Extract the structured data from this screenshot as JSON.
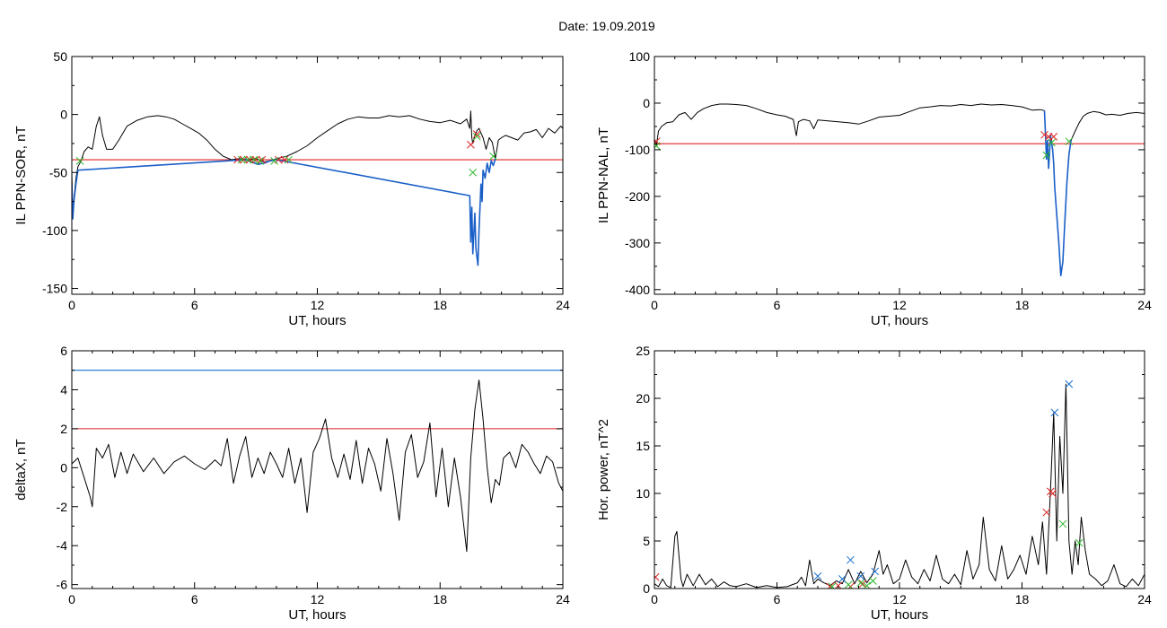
{
  "title": "Date:  19.09.2019",
  "colors": {
    "axis": "#000000",
    "threshold_red": "#e02020",
    "threshold_blue": "#1c6fd0",
    "trace": "#000000",
    "trace_blue": "#1a5fc8",
    "marker_red": "#e02020",
    "marker_green": "#2db82d",
    "marker_blue": "#1c6fd0"
  },
  "chart_data": [
    {
      "id": "p1",
      "type": "line",
      "xlabel": "UT, hours",
      "ylabel": "IL PPN-SOR, nT",
      "xlim": [
        0,
        24
      ],
      "ylim": [
        -155,
        50
      ],
      "xticks": [
        0,
        6,
        12,
        18,
        24
      ],
      "xtick_labels": [
        "0",
        "6",
        "12",
        "18",
        "24"
      ],
      "yticks": [
        50,
        0,
        -50,
        -100,
        -150
      ],
      "ytick_labels": [
        "50",
        "0",
        "-50",
        "-100",
        "-150"
      ],
      "hlines": [
        {
          "y": -39,
          "color": "red"
        }
      ],
      "series": [
        {
          "style": "black",
          "x": [
            0,
            0.05,
            0.12,
            0.2,
            0.3,
            0.45,
            0.6,
            0.8,
            1.0,
            1.2,
            1.35,
            1.5,
            1.7,
            2.0,
            2.3,
            2.7,
            3.2,
            3.7,
            4.2,
            4.6,
            5.0,
            5.4,
            5.8,
            6.2,
            6.6,
            7.0,
            7.4,
            7.8,
            8.2,
            8.6,
            9.0,
            9.4,
            9.7,
            10.0,
            10.5,
            11.0,
            11.5,
            12.0,
            12.5,
            13.0,
            13.5,
            14.0,
            14.5,
            15.0,
            15.5,
            16.0,
            16.5,
            17.0,
            17.5,
            18.0,
            18.5,
            19.0,
            19.3,
            19.45,
            19.5,
            19.55,
            19.6,
            19.7,
            19.8,
            19.9,
            20.0,
            20.1,
            20.25,
            20.4,
            20.55,
            20.7,
            20.85,
            21.0,
            21.2,
            21.5,
            21.8,
            22.1,
            22.4,
            22.7,
            23.0,
            23.3,
            23.6,
            23.9,
            24.0
          ],
          "y": [
            -50,
            -85,
            -70,
            -55,
            -45,
            -40,
            -32,
            -28,
            -30,
            -10,
            -2,
            -18,
            -30,
            -30,
            -22,
            -10,
            -5,
            -2,
            -1,
            -2,
            -4,
            -8,
            -12,
            -16,
            -22,
            -30,
            -36,
            -39,
            -38,
            -39,
            -38,
            -41,
            -40,
            -38,
            -36,
            -32,
            -27,
            -20,
            -14,
            -8,
            -4,
            -2,
            -3,
            -3,
            -1,
            -2,
            -1,
            -4,
            -6,
            -7,
            -5,
            -8,
            -4,
            -12,
            3,
            -20,
            -25,
            -18,
            -14,
            -12,
            -16,
            -20,
            -30,
            -20,
            -24,
            -38,
            -22,
            -20,
            -18,
            -20,
            -22,
            -16,
            -15,
            -13,
            -20,
            -12,
            -16,
            -10,
            -12
          ]
        },
        {
          "style": "blue",
          "x": [
            0,
            0.05,
            0.1,
            0.2,
            0.3,
            8.5,
            8.8,
            9.1,
            9.4,
            9.7,
            10.0,
            19.45,
            19.5,
            19.55,
            19.6,
            19.7,
            19.75,
            19.85,
            19.9,
            20.0,
            20.05,
            20.1,
            20.2,
            20.3,
            20.4,
            20.5,
            20.6,
            20.7
          ],
          "y": [
            -60,
            -90,
            -75,
            -60,
            -48,
            -39,
            -41,
            -43,
            -42,
            -40,
            -39,
            -70,
            -110,
            -80,
            -120,
            -85,
            -115,
            -130,
            -100,
            -60,
            -75,
            -48,
            -55,
            -42,
            -50,
            -40,
            -44,
            -38
          ]
        }
      ],
      "markers": [
        {
          "color": "red",
          "x": [
            8.1,
            8.4,
            8.7,
            9.0,
            9.3,
            10.1,
            10.4,
            19.5,
            19.8
          ],
          "y": [
            -39,
            -39,
            -39,
            -39,
            -39,
            -39,
            -39,
            -26,
            -17
          ]
        },
        {
          "color": "green",
          "x": [
            0.4,
            8.3,
            8.6,
            8.9,
            9.2,
            9.9,
            10.6,
            19.6,
            19.8,
            20.6
          ],
          "y": [
            -40,
            -39,
            -39,
            -39,
            -40,
            -40,
            -39,
            -50,
            -19,
            -36
          ]
        }
      ]
    },
    {
      "id": "p2",
      "type": "line",
      "xlabel": "UT, hours",
      "ylabel": "IL PPN-NAL, nT",
      "xlim": [
        0,
        24
      ],
      "ylim": [
        -410,
        100
      ],
      "xticks": [
        0,
        6,
        12,
        18,
        24
      ],
      "xtick_labels": [
        "0",
        "6",
        "12",
        "18",
        "24"
      ],
      "yticks": [
        100,
        0,
        -100,
        -200,
        -300,
        -400
      ],
      "ytick_labels": [
        "100",
        "0",
        "-100",
        "-200",
        "-300",
        "-400"
      ],
      "hlines": [
        {
          "y": -87,
          "color": "red"
        }
      ],
      "series": [
        {
          "style": "black",
          "x": [
            0,
            0.1,
            0.2,
            0.35,
            0.6,
            0.9,
            1.2,
            1.5,
            1.8,
            2.1,
            2.4,
            2.8,
            3.2,
            3.6,
            4.0,
            4.5,
            5.0,
            5.5,
            6.0,
            6.4,
            6.8,
            6.95,
            7.05,
            7.3,
            7.6,
            7.8,
            8.0,
            8.5,
            9.0,
            9.5,
            10.0,
            10.5,
            11.0,
            11.5,
            12.0,
            12.5,
            13.0,
            13.5,
            14.0,
            14.5,
            15.0,
            15.5,
            16.0,
            16.5,
            17.0,
            17.5,
            18.0,
            18.5,
            18.9,
            19.1
          ],
          "y": [
            -80,
            -90,
            -60,
            -50,
            -42,
            -40,
            -25,
            -20,
            -35,
            -20,
            -12,
            -5,
            -2,
            -2,
            -3,
            -5,
            -12,
            -20,
            -25,
            -28,
            -35,
            -70,
            -40,
            -35,
            -38,
            -55,
            -36,
            -38,
            -40,
            -42,
            -45,
            -38,
            -30,
            -28,
            -26,
            -18,
            -10,
            -8,
            -5,
            -6,
            -3,
            -5,
            -2,
            -4,
            -3,
            -5,
            -8,
            -15,
            -14,
            -16
          ]
        },
        {
          "style": "blue",
          "x": [
            19.1,
            19.2,
            19.25,
            19.3,
            19.4,
            19.5,
            19.55,
            19.6,
            19.7,
            19.8,
            19.9,
            20.0,
            20.1,
            20.2,
            20.3,
            20.4
          ],
          "y": [
            -16,
            -120,
            -80,
            -140,
            -70,
            -100,
            -130,
            -180,
            -240,
            -300,
            -370,
            -340,
            -250,
            -170,
            -110,
            -80
          ]
        },
        {
          "style": "black",
          "x": [
            20.4,
            20.6,
            20.8,
            21.0,
            21.2,
            21.5,
            21.8,
            22.1,
            22.4,
            22.8,
            23.2,
            23.6,
            24.0
          ],
          "y": [
            -80,
            -60,
            -42,
            -28,
            -22,
            -18,
            -20,
            -25,
            -24,
            -26,
            -22,
            -20,
            -22
          ]
        }
      ],
      "markers": [
        {
          "color": "red",
          "x": [
            0.1,
            19.1,
            19.3,
            19.55
          ],
          "y": [
            -82,
            -68,
            -72,
            -72
          ]
        },
        {
          "color": "green",
          "x": [
            0.1,
            19.2,
            19.45,
            20.3
          ],
          "y": [
            -92,
            -112,
            -85,
            -82
          ]
        }
      ]
    },
    {
      "id": "p3",
      "type": "line",
      "xlabel": "UT, hours",
      "ylabel": "deltaX, nT",
      "xlim": [
        0,
        24
      ],
      "ylim": [
        -6.2,
        6
      ],
      "xticks": [
        0,
        6,
        12,
        18,
        24
      ],
      "xtick_labels": [
        "0",
        "6",
        "12",
        "18",
        "24"
      ],
      "yticks": [
        6,
        4,
        2,
        0,
        -2,
        -4,
        -6
      ],
      "ytick_labels": [
        "6",
        "4",
        "2",
        "0",
        "-2",
        "-4",
        "-6"
      ],
      "hlines": [
        {
          "y": 5,
          "color": "blue"
        },
        {
          "y": 2,
          "color": "red"
        }
      ],
      "series": [
        {
          "style": "black",
          "x": [
            0,
            0.3,
            0.6,
            0.9,
            1.0,
            1.2,
            1.5,
            1.8,
            2.1,
            2.4,
            2.7,
            3.0,
            3.5,
            4.0,
            4.5,
            5.0,
            5.5,
            6.0,
            6.5,
            7.0,
            7.3,
            7.6,
            7.9,
            8.2,
            8.5,
            8.8,
            9.1,
            9.4,
            9.7,
            10.0,
            10.3,
            10.6,
            10.9,
            11.2,
            11.5,
            11.8,
            12.1,
            12.4,
            12.7,
            13.0,
            13.3,
            13.6,
            13.9,
            14.2,
            14.5,
            14.8,
            15.1,
            15.4,
            15.7,
            16.0,
            16.3,
            16.6,
            16.9,
            17.2,
            17.5,
            17.8,
            18.1,
            18.4,
            18.7,
            19.0,
            19.3,
            19.5,
            19.7,
            19.9,
            20.1,
            20.3,
            20.5,
            20.7,
            20.9,
            21.1,
            21.4,
            21.7,
            22.0,
            22.3,
            22.6,
            22.9,
            23.2,
            23.5,
            23.8,
            24.0
          ],
          "y": [
            0.2,
            0.5,
            -0.5,
            -1.5,
            -2.0,
            1.0,
            0.5,
            1.2,
            -0.5,
            0.8,
            -0.3,
            0.7,
            -0.2,
            0.5,
            -0.3,
            0.3,
            0.6,
            0.2,
            -0.1,
            0.4,
            0.1,
            1.5,
            -0.8,
            0.6,
            1.6,
            -0.5,
            0.5,
            -0.3,
            0.8,
            0.2,
            -0.5,
            1.0,
            -0.8,
            0.5,
            -2.3,
            0.8,
            1.5,
            2.5,
            0.5,
            -0.5,
            0.7,
            -0.6,
            1.4,
            -0.8,
            1.0,
            0.2,
            -1.2,
            1.5,
            -0.3,
            -2.7,
            0.8,
            1.7,
            -0.5,
            0.3,
            2.3,
            -1.5,
            1.0,
            -2.0,
            0.5,
            -1.5,
            -4.3,
            0.5,
            3.0,
            4.5,
            2.5,
            0.0,
            -1.8,
            -0.6,
            -0.9,
            0.5,
            0.8,
            0.0,
            1.2,
            0.8,
            0.2,
            -0.3,
            0.6,
            0.3,
            -0.8,
            -1.2
          ]
        }
      ],
      "markers": []
    },
    {
      "id": "p4",
      "type": "line",
      "xlabel": "UT, hours",
      "ylabel": "Hor. power, nT^2",
      "xlim": [
        0,
        24
      ],
      "ylim": [
        0,
        25
      ],
      "xticks": [
        0,
        6,
        12,
        18,
        24
      ],
      "xtick_labels": [
        "0",
        "6",
        "12",
        "18",
        "24"
      ],
      "yticks": [
        25,
        20,
        15,
        10,
        5,
        0
      ],
      "ytick_labels": [
        "25",
        "20",
        "15",
        "10",
        "5",
        "0"
      ],
      "hlines": [
        {
          "y": 25,
          "color": "red"
        }
      ],
      "series": [
        {
          "style": "black",
          "x": [
            0,
            0.2,
            0.4,
            0.6,
            0.8,
            1.0,
            1.1,
            1.3,
            1.4,
            1.6,
            1.9,
            2.2,
            2.5,
            2.8,
            3.1,
            3.4,
            3.7,
            4.0,
            4.5,
            5.0,
            5.5,
            6.0,
            6.5,
            7.0,
            7.2,
            7.4,
            7.6,
            7.8,
            8.0,
            8.3,
            8.6,
            8.9,
            9.2,
            9.5,
            9.8,
            10.1,
            10.4,
            10.7,
            11.0,
            11.2,
            11.4,
            11.7,
            12.0,
            12.3,
            12.6,
            12.9,
            13.2,
            13.5,
            13.8,
            14.1,
            14.4,
            14.7,
            15.0,
            15.3,
            15.6,
            15.9,
            16.1,
            16.4,
            16.7,
            17.0,
            17.3,
            17.6,
            17.9,
            18.2,
            18.5,
            18.8,
            19.0,
            19.2,
            19.4,
            19.55,
            19.7,
            19.85,
            20.0,
            20.15,
            20.3,
            20.45,
            20.6,
            20.75,
            20.9,
            21.1,
            21.3,
            21.6,
            21.9,
            22.2,
            22.5,
            22.8,
            23.1,
            23.4,
            23.7,
            24.0
          ],
          "y": [
            0.5,
            0.2,
            1.0,
            0.3,
            0.1,
            5.5,
            6.0,
            1.0,
            0.2,
            1.5,
            0.3,
            1.5,
            0.4,
            1.0,
            0.2,
            0.7,
            0.3,
            0.2,
            0.5,
            0.1,
            0.3,
            0.1,
            0.2,
            0.6,
            1.2,
            0.3,
            3.0,
            0.5,
            1.0,
            0.6,
            0.3,
            0.8,
            0.5,
            2.0,
            0.5,
            1.8,
            0.6,
            1.5,
            4.0,
            1.5,
            2.5,
            0.5,
            1.0,
            3.0,
            1.2,
            0.5,
            2.0,
            0.8,
            3.5,
            1.0,
            0.5,
            1.5,
            0.4,
            4.0,
            1.0,
            2.5,
            7.5,
            2.0,
            0.8,
            4.5,
            1.0,
            2.0,
            3.5,
            1.5,
            5.5,
            2.5,
            7.0,
            1.5,
            10.5,
            18.5,
            5.0,
            16.0,
            10.0,
            21.5,
            5.0,
            1.5,
            5.0,
            2.5,
            7.5,
            4.0,
            1.5,
            1.0,
            0.3,
            0.8,
            2.5,
            0.5,
            0.2,
            1.0,
            0.3,
            1.5
          ]
        }
      ],
      "markers": [
        {
          "color": "red",
          "x": [
            0.05,
            8.6,
            9.0,
            9.6,
            10.2,
            19.2,
            19.4,
            19.5
          ],
          "y": [
            1.2,
            0.2,
            0.3,
            0.2,
            0.5,
            8.0,
            10.2,
            10.0
          ]
        },
        {
          "color": "green",
          "x": [
            8.7,
            9.5,
            10.1,
            10.4,
            10.7,
            20.0,
            20.8
          ],
          "y": [
            0.2,
            0.4,
            0.6,
            0.3,
            0.8,
            6.8,
            4.8
          ]
        },
        {
          "color": "blue",
          "x": [
            8.0,
            9.2,
            9.6,
            10.1,
            10.8,
            19.6,
            20.3
          ],
          "y": [
            1.3,
            1.0,
            3.0,
            1.3,
            1.8,
            18.5,
            21.5
          ]
        }
      ]
    }
  ]
}
